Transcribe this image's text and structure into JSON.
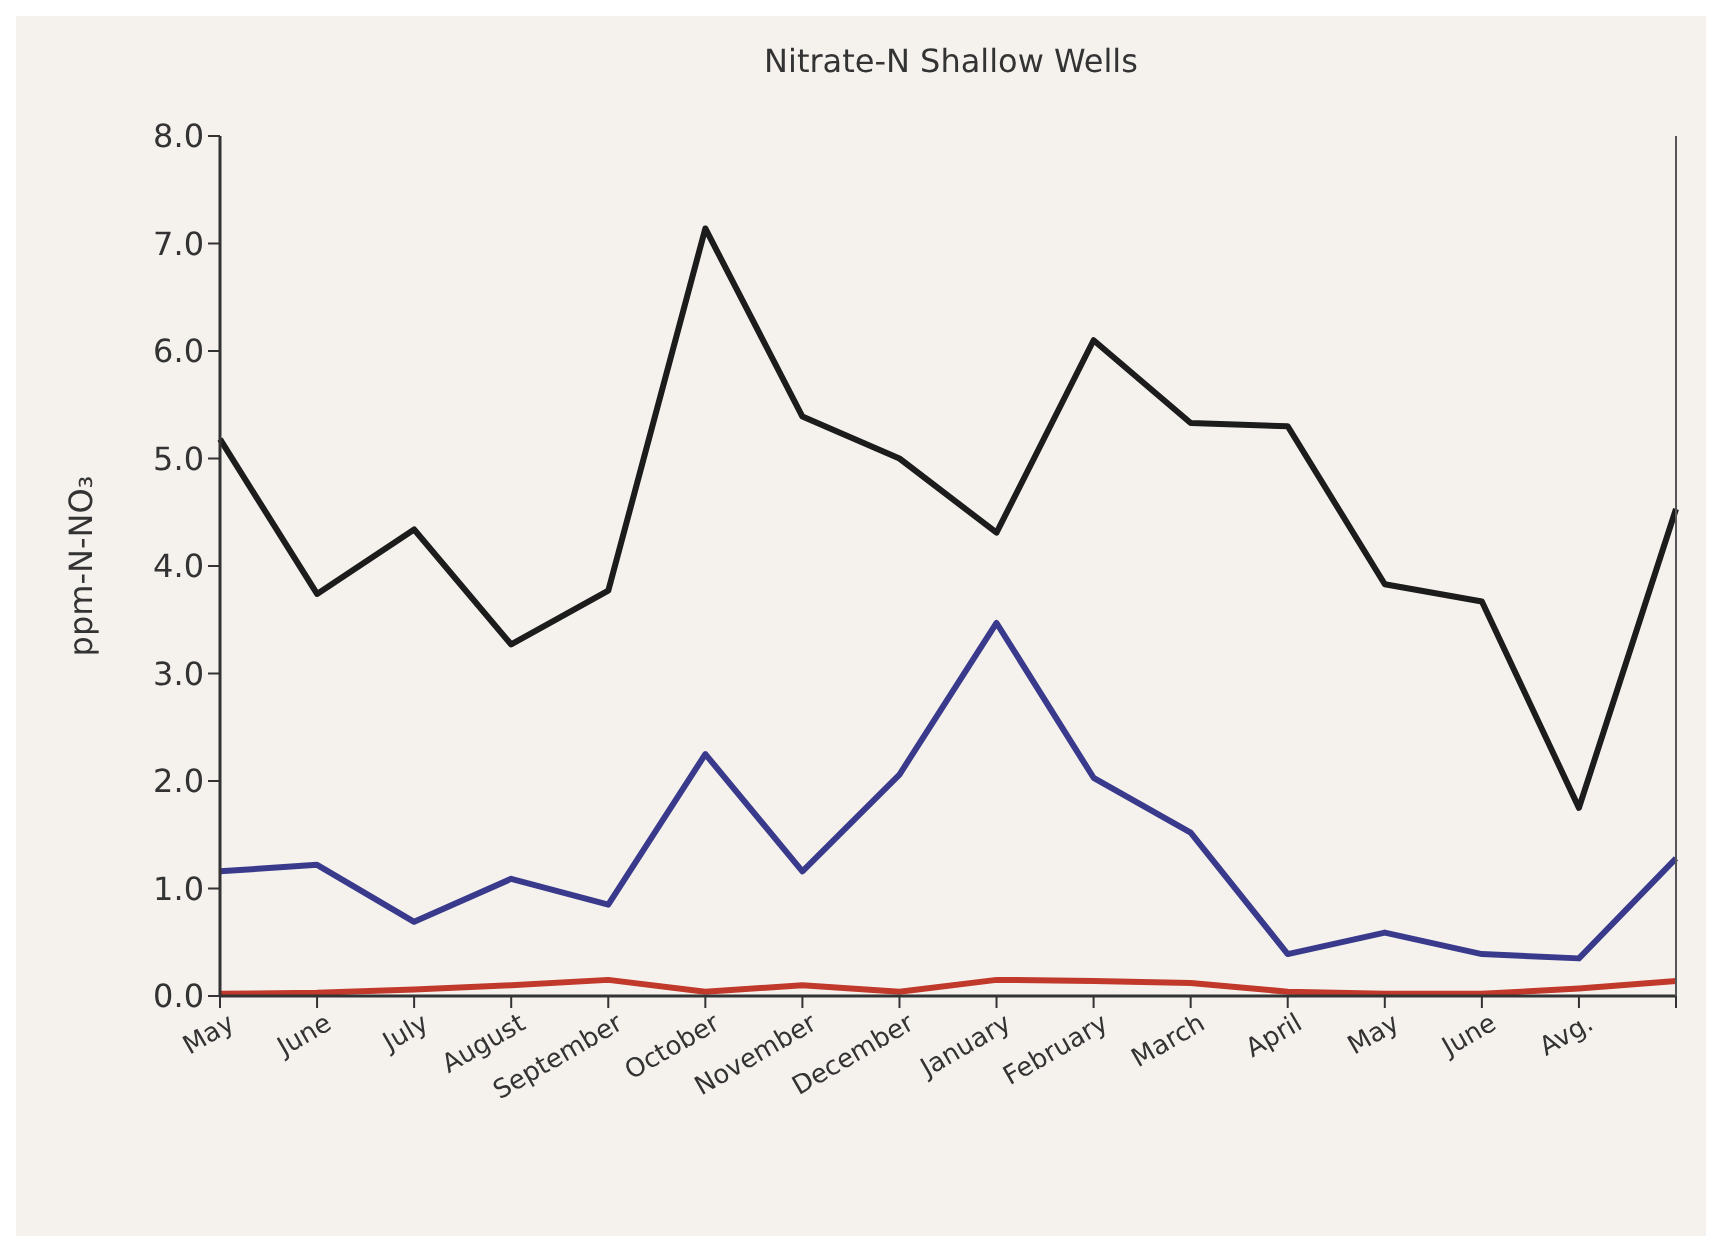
{
  "chart_data": {
    "type": "line",
    "title": "Nitrate-N Shallow Wells",
    "ylabel": "ppm-N-NO₃",
    "categories": [
      "May",
      "June",
      "July",
      "August",
      "September",
      "October",
      "November",
      "December",
      "January",
      "February",
      "March",
      "April",
      "May",
      "June",
      "Avg.",
      null
    ],
    "series": [
      {
        "color": "#1c1c1c",
        "values": [
          5.18,
          3.74,
          4.34,
          3.27,
          3.77,
          7.14,
          5.39,
          5.0,
          4.31,
          6.1,
          5.33,
          5.3,
          3.83,
          3.67,
          1.75,
          4.53
        ]
      },
      {
        "color": "#3a3a8c",
        "values": [
          1.16,
          1.22,
          0.69,
          1.09,
          0.85,
          2.25,
          1.16,
          2.06,
          3.47,
          2.03,
          1.52,
          0.39,
          0.59,
          0.39,
          0.35,
          1.28
        ]
      },
      {
        "color": "#c0392b",
        "values": [
          0.02,
          0.03,
          0.06,
          0.1,
          0.15,
          0.04,
          0.1,
          0.04,
          0.15,
          0.14,
          0.12,
          0.04,
          0.02,
          0.02,
          0.07,
          0.14
        ]
      }
    ],
    "ylim": [
      0,
      8
    ],
    "yticks": [
      {
        "value": 0,
        "label": "0.0"
      },
      {
        "value": 1,
        "label": "1.0"
      },
      {
        "value": 2,
        "label": "2.0"
      },
      {
        "value": 3,
        "label": "3.0"
      },
      {
        "value": 4,
        "label": "4.0"
      },
      {
        "value": 5,
        "label": "5.0"
      },
      {
        "value": 6,
        "label": "6.0"
      },
      {
        "value": 7,
        "label": "7.0"
      },
      {
        "value": 8,
        "label": "8.0"
      }
    ],
    "grid": false,
    "legend": false,
    "marker": "none",
    "line_style": "solid"
  }
}
